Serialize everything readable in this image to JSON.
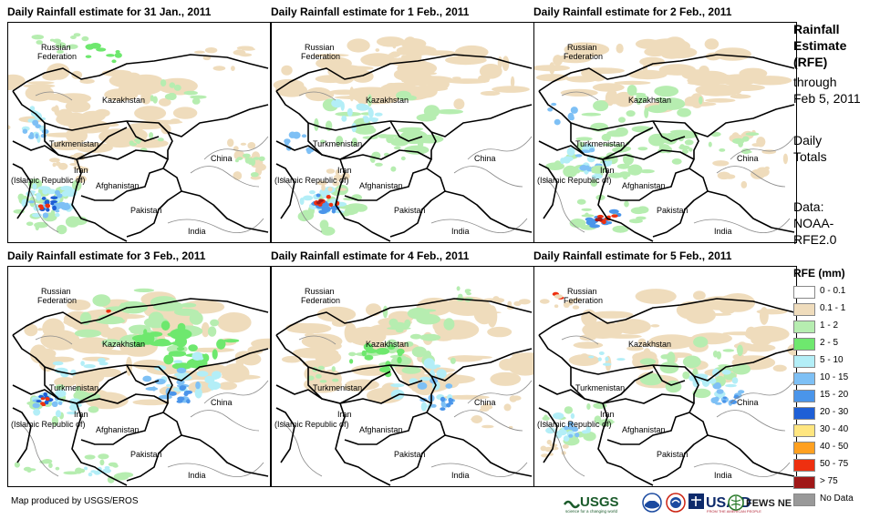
{
  "panels": [
    {
      "title": "Daily Rainfall estimate for 31 Jan., 2011",
      "day": 0
    },
    {
      "title": "Daily Rainfall estimate for 1 Feb., 2011",
      "day": 1
    },
    {
      "title": "Daily Rainfall estimate for 2 Feb., 2011",
      "day": 2
    },
    {
      "title": "Daily Rainfall estimate for 3 Feb., 2011",
      "day": 3
    },
    {
      "title": "Daily Rainfall estimate for 4 Feb., 2011",
      "day": 4
    },
    {
      "title": "Daily Rainfall estimate for 5 Feb., 2011",
      "day": 5
    }
  ],
  "map_labels": {
    "russia_1": "Russian",
    "russia_2": "Federation",
    "kazakhstan": "Kazakhstan",
    "turkmenistan": "Turkmenistan",
    "china": "China",
    "iran_1": "Iran",
    "iran_2": "(Islamic Republic of)",
    "afghanistan": "Afghanistan",
    "pakistan": "Pakistan",
    "india": "India"
  },
  "side_info": {
    "title_1": "Rainfall",
    "title_2": "Estimate",
    "title_3": "(RFE)",
    "through": "through",
    "date": "Feb 5, 2011",
    "totals_1": "Daily",
    "totals_2": "Totals",
    "data_1": "Data:",
    "data_2": "NOAA-",
    "data_3": "RFE2.0"
  },
  "legend": {
    "title": "RFE (mm)",
    "items": [
      {
        "label": "0 - 0.1",
        "color": "#ffffff"
      },
      {
        "label": "0.1 - 1",
        "color": "#efdcbc"
      },
      {
        "label": "1 - 2",
        "color": "#b6edb0"
      },
      {
        "label": "2 - 5",
        "color": "#6ee86e"
      },
      {
        "label": "5 - 10",
        "color": "#b3eef7"
      },
      {
        "label": "10 - 15",
        "color": "#7ec0f5"
      },
      {
        "label": "15 - 20",
        "color": "#4a95ea"
      },
      {
        "label": "20 - 30",
        "color": "#1e5fd6"
      },
      {
        "label": "30 - 40",
        "color": "#ffe680"
      },
      {
        "label": "40 - 50",
        "color": "#ffa020"
      },
      {
        "label": "50 - 75",
        "color": "#ee3010"
      },
      {
        "label": "> 75",
        "color": "#a01818"
      },
      {
        "label": "No Data",
        "color": "#999999"
      }
    ]
  },
  "footer": {
    "credit": "Map produced by USGS/EROS"
  },
  "logos": {
    "usgs": "USGS",
    "usgs_tag": "science for a changing world",
    "usaid": "USAID",
    "usaid_tag": "FROM THE AMERICAN PEOPLE",
    "fews": "FEWS NET"
  }
}
